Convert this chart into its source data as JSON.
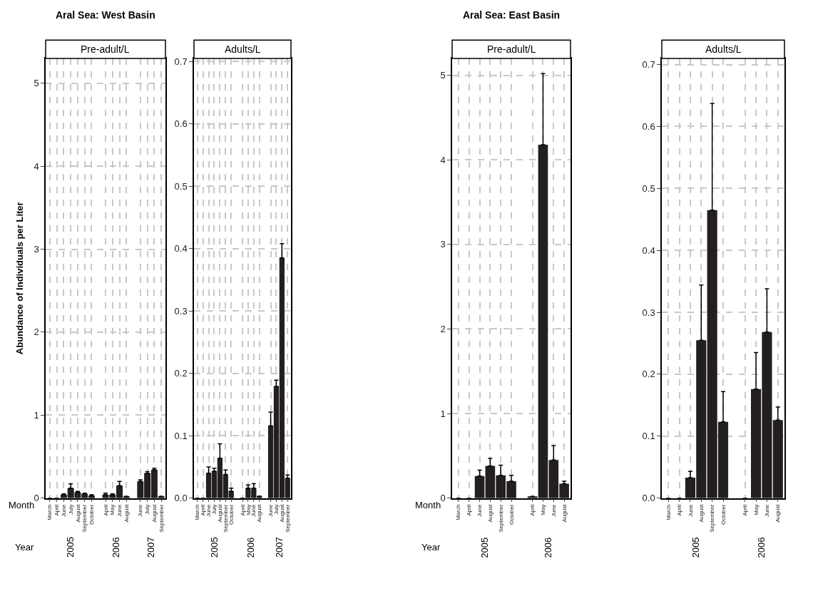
{
  "chart_data": [
    {
      "type": "bar",
      "title": "Aral Sea: West Basin",
      "subtitle": "Pre-adult/L",
      "ylabel": "Abundance of Individuals per Liter",
      "color": "#231f20",
      "grid": true,
      "categories": [
        "March",
        "April",
        "June",
        "July",
        "August",
        "September",
        "October",
        null,
        "April",
        "May",
        "June",
        "August",
        null,
        "June",
        "July",
        "August",
        "September"
      ],
      "values": [
        0,
        0,
        0.04,
        0.12,
        0.07,
        0.05,
        0.03,
        null,
        0.04,
        0.04,
        0.15,
        0.02,
        null,
        0.2,
        0.3,
        0.34,
        0.02
      ],
      "errors": [
        null,
        null,
        [
          0.04,
          0.05
        ],
        [
          0.12,
          0.17
        ],
        [
          0.07,
          0.08
        ],
        [
          0.05,
          0.06
        ],
        [
          0.03,
          0.04
        ],
        null,
        [
          0.04,
          0.06
        ],
        [
          0.04,
          0.05
        ],
        [
          0.15,
          0.2
        ],
        null,
        null,
        [
          0.2,
          0.22
        ],
        [
          0.3,
          0.32
        ],
        [
          0.34,
          0.36
        ],
        null
      ],
      "ylim": [
        0,
        5.3
      ],
      "yticks": [
        0,
        1,
        2,
        3,
        4,
        5
      ],
      "annotations": [
        "Month",
        "Year",
        "2005",
        "2006",
        "2007"
      ]
    },
    {
      "type": "bar",
      "subtitle": "Adults/L",
      "color": "#231f20",
      "grid": true,
      "categories": [
        "March",
        "April",
        "June",
        "July",
        "August",
        "September",
        "October",
        null,
        "April",
        "May",
        "June",
        "August",
        null,
        "June",
        "July",
        "August",
        "September"
      ],
      "values": [
        0,
        0,
        0.04,
        0.043,
        0.064,
        0.038,
        0.011,
        null,
        0,
        0.016,
        0.016,
        0.003,
        null,
        0.116,
        0.179,
        0.385,
        0.032
      ],
      "errors": [
        null,
        null,
        [
          0.04,
          0.05
        ],
        [
          0.043,
          0.048
        ],
        [
          0.064,
          0.087
        ],
        [
          0.038,
          0.045
        ],
        [
          0.011,
          0.016
        ],
        null,
        null,
        [
          0.016,
          0.021
        ],
        [
          0.016,
          0.023
        ],
        null,
        null,
        [
          0.116,
          0.138
        ],
        [
          0.179,
          0.189
        ],
        [
          0.385,
          0.408
        ],
        [
          0.032,
          0.037
        ]
      ],
      "ylim": [
        0,
        0.705
      ],
      "yticks": [
        {
          "value": 0,
          "label": "0.0"
        },
        0.1,
        0.2,
        0.3,
        0.4,
        0.5,
        0.6,
        0.7
      ],
      "annotations": [
        "2005",
        "2006",
        "2007"
      ]
    },
    {
      "type": "bar",
      "title": "Aral Sea: East Basin",
      "subtitle": "Pre-adult/L",
      "color": "#231f20",
      "grid": true,
      "categories": [
        "March",
        "April",
        "June",
        "August",
        "September",
        "October",
        null,
        "April",
        "May",
        "June",
        "August"
      ],
      "values": [
        0,
        0,
        0.26,
        0.38,
        0.27,
        0.2,
        null,
        0.02,
        4.18,
        0.45,
        0.17
      ],
      "errors": [
        null,
        null,
        [
          0.26,
          0.33
        ],
        [
          0.38,
          0.47
        ],
        [
          0.27,
          0.39
        ],
        [
          0.2,
          0.27
        ],
        null,
        null,
        [
          4.18,
          5.02
        ],
        [
          0.45,
          0.62
        ],
        [
          0.17,
          0.2
        ]
      ],
      "ylim": [
        0,
        5.2
      ],
      "yticks": [
        0,
        1,
        2,
        3,
        4,
        5
      ],
      "annotations": [
        "Month",
        "Year",
        "2005",
        "2006"
      ]
    },
    {
      "type": "bar",
      "subtitle": "Adults/L",
      "color": "#231f20",
      "grid": true,
      "categories": [
        "March",
        "April",
        "June",
        "August",
        "September",
        "October",
        null,
        "April",
        "May",
        "June",
        "August"
      ],
      "values": [
        0,
        0,
        0.033,
        0.255,
        0.465,
        0.123,
        null,
        0,
        0.176,
        0.268,
        0.126
      ],
      "errors": [
        null,
        null,
        [
          0.033,
          0.043
        ],
        [
          0.255,
          0.344
        ],
        [
          0.465,
          0.637
        ],
        [
          0.123,
          0.172
        ],
        null,
        null,
        [
          0.176,
          0.235
        ],
        [
          0.268,
          0.338
        ],
        [
          0.126,
          0.147
        ]
      ],
      "ylim": [
        0,
        0.71
      ],
      "yticks": [
        {
          "value": 0,
          "label": "0.0"
        },
        0.1,
        0.2,
        0.3,
        0.4,
        0.5,
        0.6,
        0.7
      ],
      "annotations": [
        "2005",
        "2006"
      ]
    }
  ]
}
